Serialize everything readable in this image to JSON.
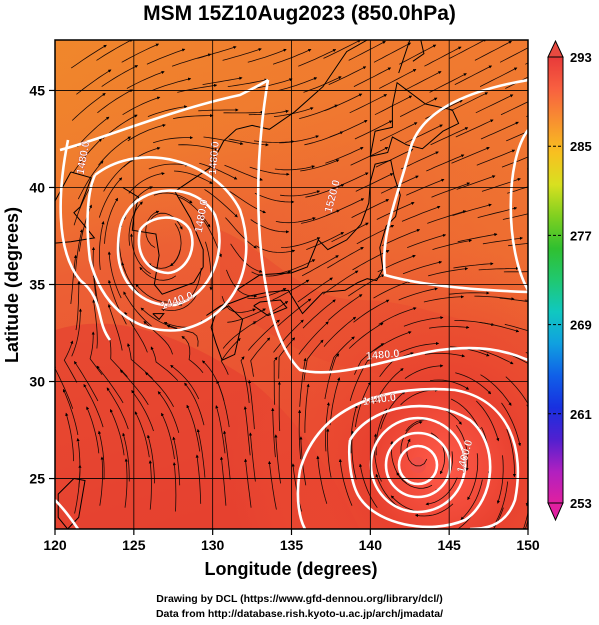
{
  "title": "MSM 15Z10Aug2023 (850.0hPa)",
  "xaxis": {
    "label": "Longitude (degrees)",
    "ticks": [
      120,
      125,
      130,
      135,
      140,
      145,
      150
    ],
    "range": [
      120,
      150
    ]
  },
  "yaxis": {
    "label": "Latitude  (degrees)",
    "ticks": [
      25,
      30,
      35,
      40,
      45
    ],
    "range": [
      22.4,
      47.6
    ]
  },
  "colorbar": {
    "ticks": [
      293,
      285,
      277,
      269,
      261,
      253
    ],
    "range": [
      253,
      293
    ],
    "stops": [
      "#e020a0",
      "#b020c0",
      "#5020d0",
      "#1830e0",
      "#1060e8",
      "#10a0e0",
      "#10c8c0",
      "#20c870",
      "#30c030",
      "#80d020",
      "#d8e020",
      "#f8c020",
      "#f89030",
      "#f86040",
      "#e83a3a"
    ]
  },
  "contour_labels": [
    {
      "text": "1480.0",
      "lon": 122.0,
      "lat": 41.5,
      "rot": -80
    },
    {
      "text": "1480.0",
      "lon": 129.5,
      "lat": 38.5,
      "rot": -80
    },
    {
      "text": "1480.0",
      "lon": 130.3,
      "lat": 41.5,
      "rot": -85
    },
    {
      "text": "1440.0",
      "lon": 127.8,
      "lat": 34.0,
      "rot": -20
    },
    {
      "text": "1520.0",
      "lon": 137.8,
      "lat": 39.5,
      "rot": -75
    },
    {
      "text": "1480.0",
      "lon": 140.8,
      "lat": 31.2,
      "rot": -5
    },
    {
      "text": "1440.0",
      "lon": 140.6,
      "lat": 28.9,
      "rot": -8
    },
    {
      "text": "1400.0",
      "lon": 146.2,
      "lat": 26.1,
      "rot": -75
    }
  ],
  "credits": {
    "line1": "Drawing by DCL (https://www.gfd-dennou.org/library/dcl/)",
    "line2": "Data from http://database.rish.kyoto-u.ac.jp/arch/jmadata/"
  },
  "colors": {
    "field_warm": "#f06838",
    "field_hot": "#e43a30",
    "field_orange": "#f08a2a",
    "contour": "#ffffff",
    "coast": "#000000",
    "grid": "#000000"
  }
}
